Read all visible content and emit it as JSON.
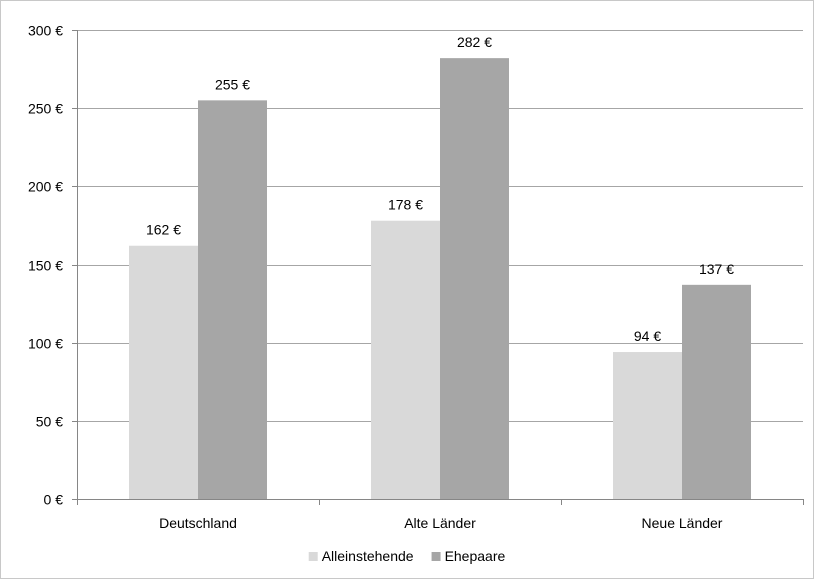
{
  "chart_data": {
    "type": "bar",
    "categories": [
      "Deutschland",
      "Alte Länder",
      "Neue Länder"
    ],
    "series": [
      {
        "name": "Alleinstehende",
        "color": "#d9d9d9",
        "values": [
          162,
          178,
          94
        ],
        "labels": [
          "162 €",
          "178 €",
          "94 €"
        ]
      },
      {
        "name": "Ehepaare",
        "color": "#a6a6a6",
        "values": [
          255,
          282,
          137
        ],
        "labels": [
          "255 €",
          "282 €",
          "137 €"
        ]
      }
    ],
    "ylim": [
      0,
      300
    ],
    "yticks": [
      {
        "value": 0,
        "label": "0 €"
      },
      {
        "value": 50,
        "label": "50 €"
      },
      {
        "value": 100,
        "label": "100 €"
      },
      {
        "value": 150,
        "label": "150 €"
      },
      {
        "value": 200,
        "label": "200 €"
      },
      {
        "value": 250,
        "label": "250 €"
      },
      {
        "value": 300,
        "label": "300 €"
      }
    ],
    "grid": true,
    "legend": "bottom",
    "gridColor": "#a6a6a6",
    "axisColor": "#868686"
  }
}
